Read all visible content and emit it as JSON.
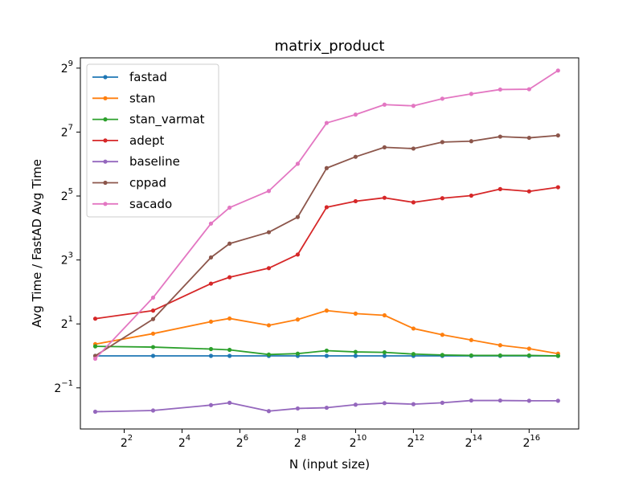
{
  "chart_data": {
    "type": "line",
    "title": "matrix_product",
    "xlabel": "N (input size)",
    "ylabel": "Avg Time / FastAD Avg Time",
    "x_scale": "log2",
    "y_scale": "log2",
    "x_range": [
      1.4,
      215000
    ],
    "y_range": [
      0.205,
      640
    ],
    "x_ticks": [
      {
        "base": "2",
        "exp": "2",
        "value": 4
      },
      {
        "base": "2",
        "exp": "4",
        "value": 16
      },
      {
        "base": "2",
        "exp": "6",
        "value": 64
      },
      {
        "base": "2",
        "exp": "8",
        "value": 256
      },
      {
        "base": "2",
        "exp": "10",
        "value": 1024
      },
      {
        "base": "2",
        "exp": "12",
        "value": 4096
      },
      {
        "base": "2",
        "exp": "14",
        "value": 16384
      },
      {
        "base": "2",
        "exp": "16",
        "value": 65536
      }
    ],
    "y_ticks": [
      {
        "base": "2",
        "exp": "−1",
        "value": 0.5
      },
      {
        "base": "2",
        "exp": "1",
        "value": 2
      },
      {
        "base": "2",
        "exp": "3",
        "value": 8
      },
      {
        "base": "2",
        "exp": "5",
        "value": 32
      },
      {
        "base": "2",
        "exp": "7",
        "value": 128
      },
      {
        "base": "2",
        "exp": "9",
        "value": 512
      }
    ],
    "grid": false,
    "legend_position": "top-left",
    "x": [
      2,
      8,
      32,
      50,
      128,
      256,
      512,
      1024,
      2048,
      4096,
      8192,
      16384,
      32768,
      65536,
      131072
    ],
    "series": [
      {
        "name": "fastad",
        "color": "#1f77b4",
        "values": [
          1,
          1,
          1,
          1,
          1,
          1,
          1,
          1,
          1,
          1,
          1,
          1,
          1,
          1,
          1
        ]
      },
      {
        "name": "stan",
        "color": "#ff7f0e",
        "values": [
          1.29,
          1.62,
          2.1,
          2.25,
          1.94,
          2.2,
          2.67,
          2.5,
          2.41,
          1.81,
          1.58,
          1.41,
          1.26,
          1.17,
          1.05
        ]
      },
      {
        "name": "stan_varmat",
        "color": "#2ca02c",
        "values": [
          1.23,
          1.21,
          1.16,
          1.14,
          1.03,
          1.05,
          1.12,
          1.09,
          1.08,
          1.04,
          1.02,
          1.01,
          1.01,
          1.01,
          1.0
        ]
      },
      {
        "name": "adept",
        "color": "#d62728",
        "values": [
          2.24,
          2.67,
          4.79,
          5.5,
          6.7,
          9.0,
          25.1,
          28.6,
          30.8,
          27.9,
          30.5,
          32.3,
          37.2,
          35.4,
          38.7
        ]
      },
      {
        "name": "baseline",
        "color": "#9467bd",
        "values": [
          0.298,
          0.306,
          0.344,
          0.362,
          0.302,
          0.32,
          0.325,
          0.347,
          0.359,
          0.351,
          0.362,
          0.38,
          0.38,
          0.378,
          0.378
        ]
      },
      {
        "name": "cppad",
        "color": "#8c564b",
        "values": [
          1.0,
          2.22,
          8.45,
          11.4,
          14.6,
          20.3,
          58.6,
          74.9,
          92.0,
          89.5,
          103.0,
          105.0,
          116.0,
          113.0,
          119.0
        ]
      },
      {
        "name": "sacado",
        "color": "#e377c2",
        "values": [
          0.94,
          3.54,
          17.6,
          24.9,
          35.7,
          64.4,
          156.0,
          187.0,
          232.0,
          226.0,
          264.0,
          293.0,
          322.0,
          324.0,
          486.0
        ]
      }
    ]
  }
}
